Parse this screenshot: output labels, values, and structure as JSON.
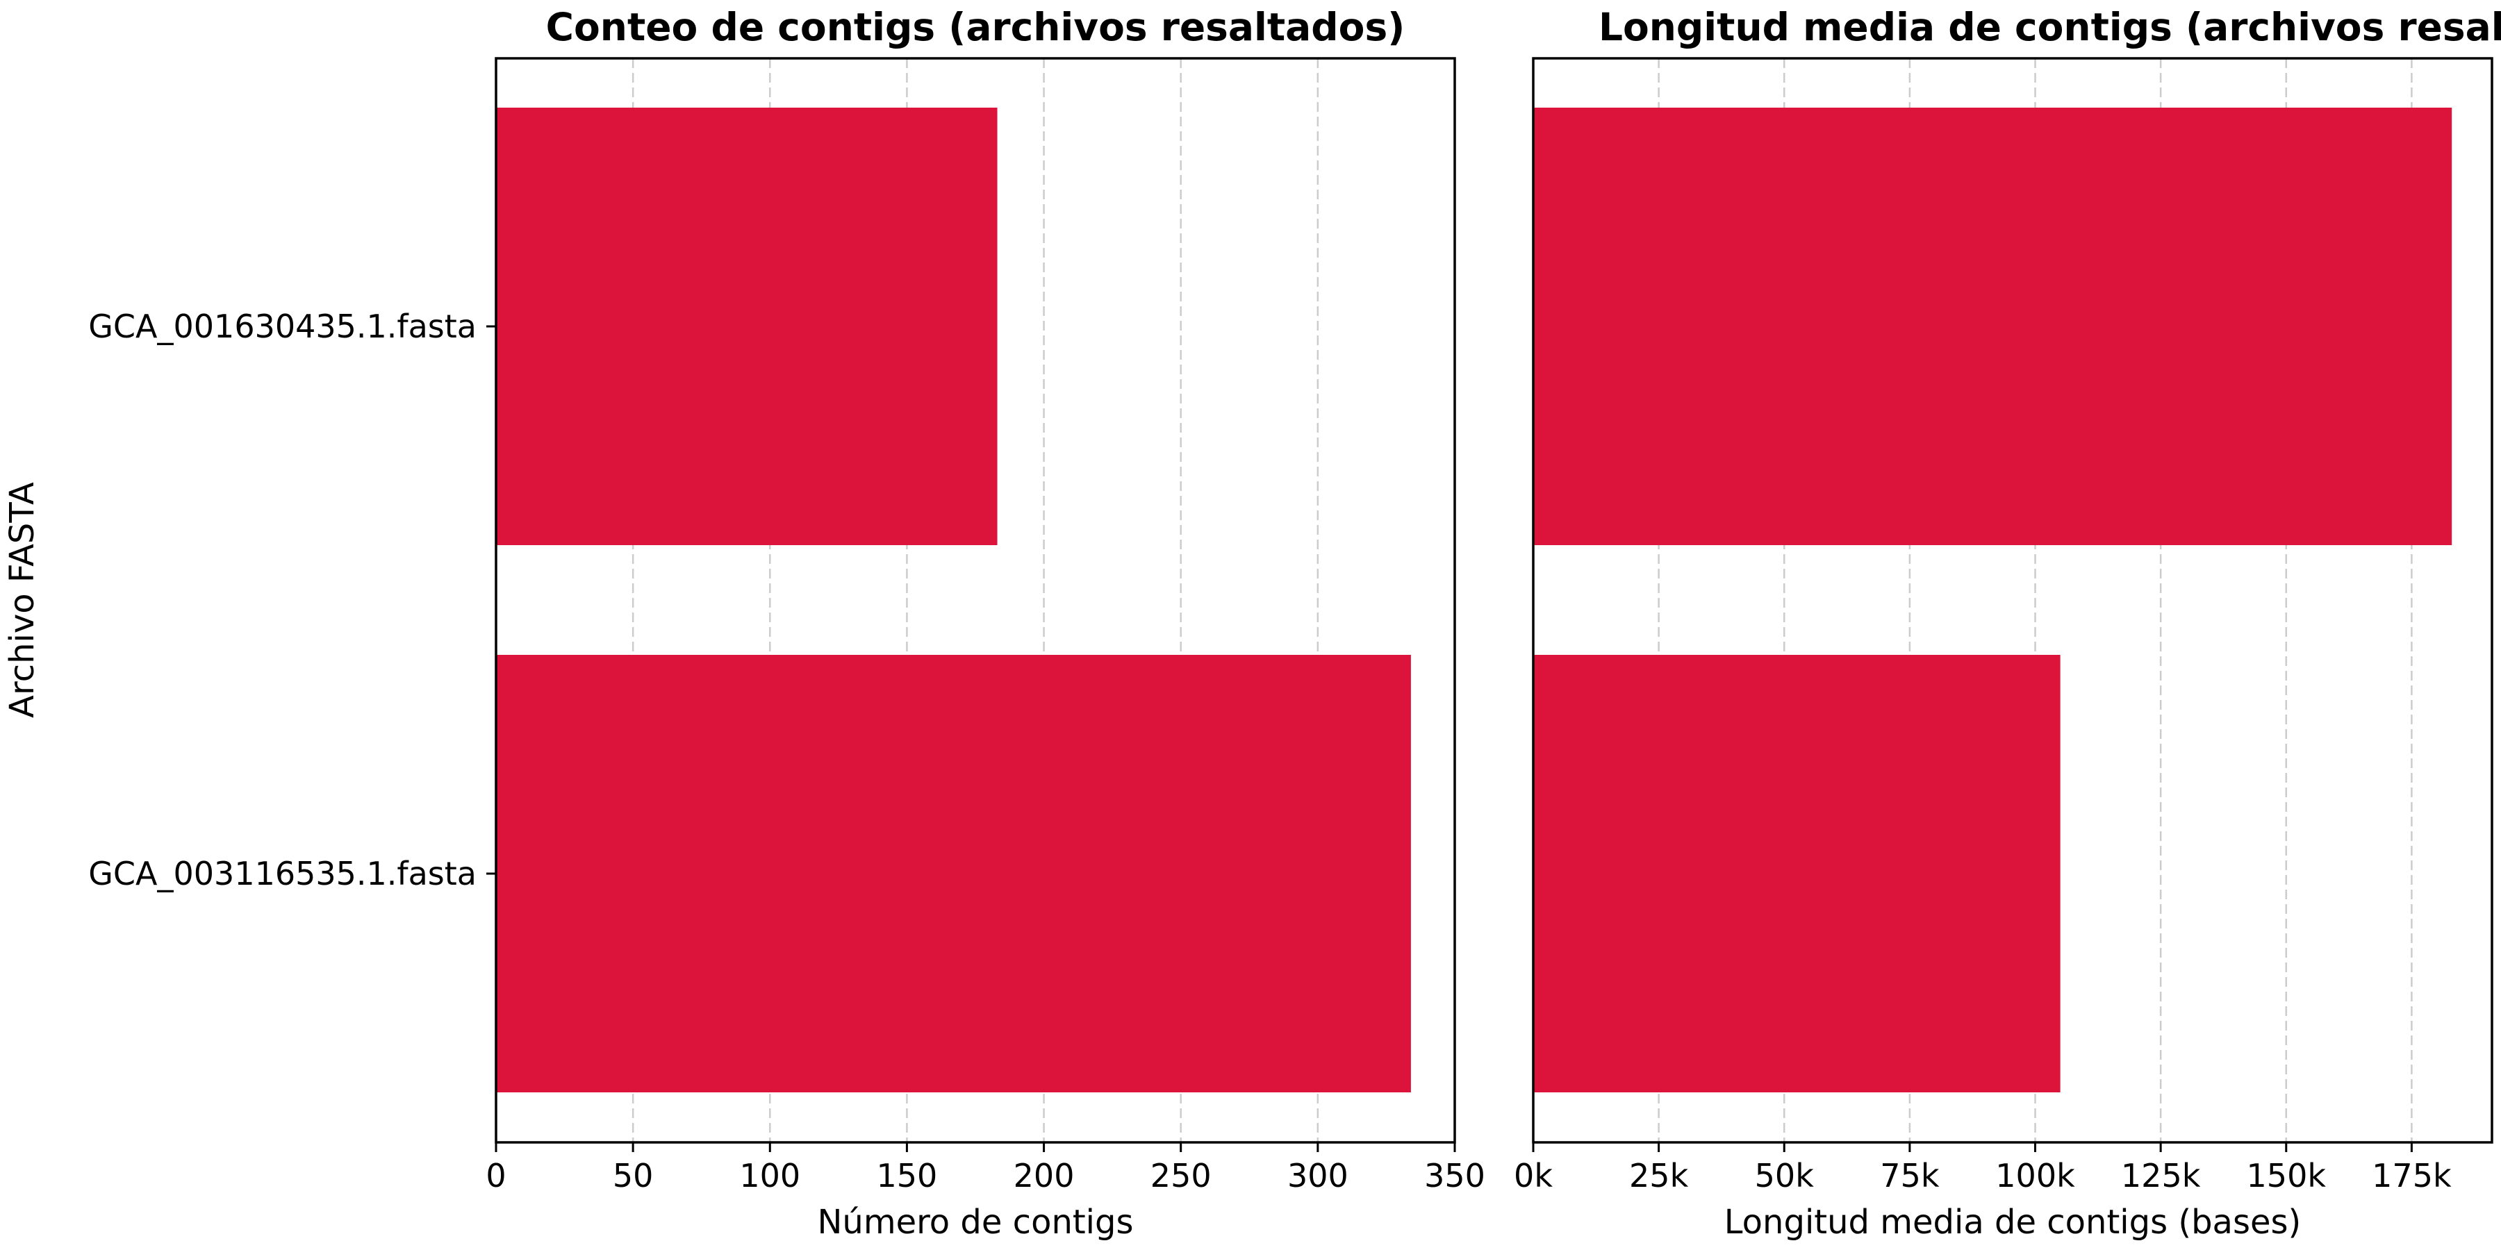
{
  "chart_data": [
    {
      "type": "bar",
      "orientation": "horizontal",
      "title": "Conteo de contigs (archivos resaltados)",
      "xlabel": "Número de contigs",
      "ylabel": "Archivo FASTA",
      "categories": [
        "GCA_001630435.1.fasta",
        "GCA_003116535.1.fasta"
      ],
      "values": [
        183,
        334
      ],
      "xlim": [
        0,
        350
      ],
      "xticks": [
        0,
        50,
        100,
        150,
        200,
        250,
        300,
        350
      ],
      "xtick_labels": [
        "0",
        "50",
        "100",
        "150",
        "200",
        "250",
        "300",
        "350"
      ],
      "bar_color": "#dc143c",
      "grid": "x dashed"
    },
    {
      "type": "bar",
      "orientation": "horizontal",
      "title": "Longitud media de contigs (archivos resaltados)",
      "xlabel": "Longitud media de contigs (bases)",
      "ylabel": "",
      "categories": [
        "GCA_001630435.1.fasta",
        "GCA_003116535.1.fasta"
      ],
      "values": [
        183000,
        105000
      ],
      "xlim": [
        0,
        191000
      ],
      "xticks": [
        0,
        25000,
        50000,
        75000,
        100000,
        125000,
        150000,
        175000
      ],
      "xtick_labels": [
        "0k",
        "25k",
        "50k",
        "75k",
        "100k",
        "125k",
        "150k",
        "175k"
      ],
      "bar_color": "#dc143c",
      "grid": "x dashed"
    }
  ]
}
